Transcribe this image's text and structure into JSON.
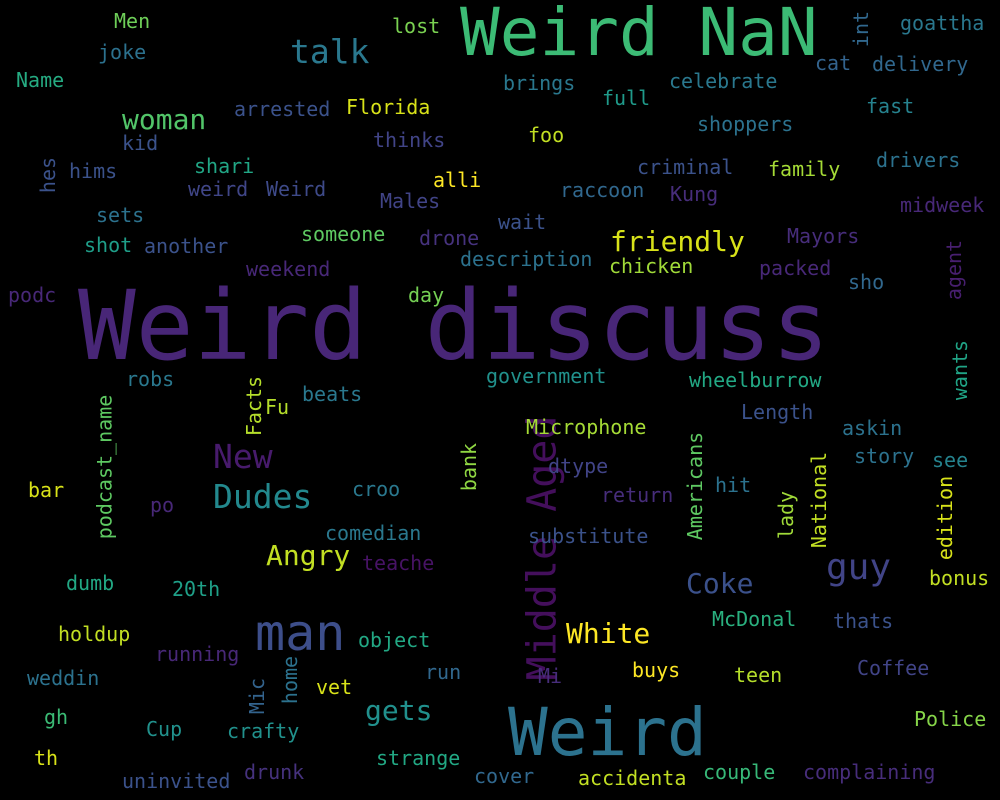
{
  "colors": {
    "background": "#000000",
    "palette": "viridis"
  },
  "words": [
    {
      "text": "Weird discuss",
      "color": "#482677"
    },
    {
      "text": "Weird NaN",
      "color": "#3cbb75"
    },
    {
      "text": "Weird",
      "color": "#2c728e"
    },
    {
      "text": "man",
      "color": "#3d4e8a"
    },
    {
      "text": "Middle Aged",
      "color": "#440f5c"
    },
    {
      "text": "talk",
      "color": "#2a788e"
    },
    {
      "text": "woman",
      "color": "#52c569"
    },
    {
      "text": "New",
      "color": "#481b6d"
    },
    {
      "text": "Dudes",
      "color": "#23898e"
    },
    {
      "text": "Angry",
      "color": "#c2df23"
    },
    {
      "text": "friendly",
      "color": "#d8e219"
    },
    {
      "text": "guy",
      "color": "#414487"
    },
    {
      "text": "Coke",
      "color": "#3b518b"
    },
    {
      "text": "White",
      "color": "#fde725"
    },
    {
      "text": "gets",
      "color": "#21908d"
    },
    {
      "text": "Men",
      "color": "#6ece58"
    },
    {
      "text": "lost",
      "color": "#7ad151"
    },
    {
      "text": "int",
      "color": "#31688e"
    },
    {
      "text": "goattha",
      "color": "#2a788e"
    },
    {
      "text": "joke",
      "color": "#2c718e"
    },
    {
      "text": "Name",
      "color": "#25ab82"
    },
    {
      "text": "brings",
      "color": "#2a788e"
    },
    {
      "text": "celebrate",
      "color": "#2a788e"
    },
    {
      "text": "cat",
      "color": "#33638d"
    },
    {
      "text": "delivery",
      "color": "#31688e"
    },
    {
      "text": "arrested",
      "color": "#3b528b"
    },
    {
      "text": "Florida",
      "color": "#d8e219"
    },
    {
      "text": "full",
      "color": "#1f9a8a"
    },
    {
      "text": "fast",
      "color": "#26828e"
    },
    {
      "text": "kid",
      "color": "#3b528b"
    },
    {
      "text": "thinks",
      "color": "#414487"
    },
    {
      "text": "foo",
      "color": "#c2df23"
    },
    {
      "text": "shoppers",
      "color": "#2c728e"
    },
    {
      "text": "hes",
      "color": "#3b528b"
    },
    {
      "text": "hims",
      "color": "#3b528b"
    },
    {
      "text": "shari",
      "color": "#21a685"
    },
    {
      "text": "weird",
      "color": "#404688"
    },
    {
      "text": "Weird",
      "color": "#3e4a89"
    },
    {
      "text": "criminal",
      "color": "#3b528b"
    },
    {
      "text": "family",
      "color": "#a5db36"
    },
    {
      "text": "drivers",
      "color": "#2c728e"
    },
    {
      "text": "alli",
      "color": "#fde725"
    },
    {
      "text": "raccoon",
      "color": "#31688e"
    },
    {
      "text": "Kung",
      "color": "#472d7b"
    },
    {
      "text": "Males",
      "color": "#414487"
    },
    {
      "text": "midweek",
      "color": "#482878"
    },
    {
      "text": "sets",
      "color": "#2c728e"
    },
    {
      "text": "wait",
      "color": "#3b528b"
    },
    {
      "text": "shot",
      "color": "#1f9e89"
    },
    {
      "text": "another",
      "color": "#3b528b"
    },
    {
      "text": "someone",
      "color": "#5ec962"
    },
    {
      "text": "drone",
      "color": "#46327e"
    },
    {
      "text": "Mayors",
      "color": "#472d7b"
    },
    {
      "text": "description",
      "color": "#2c728e"
    },
    {
      "text": "chicken",
      "color": "#a0da39"
    },
    {
      "text": "packed",
      "color": "#482878"
    },
    {
      "text": "agent",
      "color": "#481f70"
    },
    {
      "text": "weekend",
      "color": "#482878"
    },
    {
      "text": "sho",
      "color": "#31688e"
    },
    {
      "text": "podc",
      "color": "#482878"
    },
    {
      "text": "day",
      "color": "#75d054"
    },
    {
      "text": "government",
      "color": "#21918c"
    },
    {
      "text": "wheelburrow",
      "color": "#22a884"
    },
    {
      "text": "wants",
      "color": "#20a486"
    },
    {
      "text": "robs",
      "color": "#2a788e"
    },
    {
      "text": "beats",
      "color": "#2a788e"
    },
    {
      "text": "Facts",
      "color": "#b5de2b"
    },
    {
      "text": "Fu",
      "color": "#b5de2b"
    },
    {
      "text": "Length",
      "color": "#3b528b"
    },
    {
      "text": "askin",
      "color": "#2c728e"
    },
    {
      "text": "Microphone",
      "color": "#a5db36"
    },
    {
      "text": "podcast_name",
      "color": "#5ec962"
    },
    {
      "text": "Americans",
      "color": "#5ec962"
    },
    {
      "text": "National",
      "color": "#c2df23"
    },
    {
      "text": "story",
      "color": "#2c728e"
    },
    {
      "text": "see",
      "color": "#25838e"
    },
    {
      "text": "dtype",
      "color": "#414487"
    },
    {
      "text": "bank",
      "color": "#90d743"
    },
    {
      "text": "hit",
      "color": "#2c728e"
    },
    {
      "text": "edition",
      "color": "#d8e219"
    },
    {
      "text": "bar",
      "color": "#d8e219"
    },
    {
      "text": "croo",
      "color": "#2a788e"
    },
    {
      "text": "return",
      "color": "#472d7b"
    },
    {
      "text": "lady",
      "color": "#a0da39"
    },
    {
      "text": "po",
      "color": "#482878"
    },
    {
      "text": "comedian",
      "color": "#2a788e"
    },
    {
      "text": "substitute",
      "color": "#3b528b"
    },
    {
      "text": "teache",
      "color": "#471365"
    },
    {
      "text": "bonus",
      "color": "#c2df23"
    },
    {
      "text": "dumb",
      "color": "#22a884"
    },
    {
      "text": "20th",
      "color": "#1fa088"
    },
    {
      "text": "McDonal",
      "color": "#2ab07f"
    },
    {
      "text": "thats",
      "color": "#3b528b"
    },
    {
      "text": "holdup",
      "color": "#c2df23"
    },
    {
      "text": "object",
      "color": "#22a884"
    },
    {
      "text": "running",
      "color": "#482878"
    },
    {
      "text": "home",
      "color": "#2c728e"
    },
    {
      "text": "weddin",
      "color": "#2c728e"
    },
    {
      "text": "Mic",
      "color": "#33638d"
    },
    {
      "text": "run",
      "color": "#31688e"
    },
    {
      "text": "Mi",
      "color": "#472d7b"
    },
    {
      "text": "buys",
      "color": "#fde725"
    },
    {
      "text": "teen",
      "color": "#b5de2b"
    },
    {
      "text": "Coffee",
      "color": "#414487"
    },
    {
      "text": "vet",
      "color": "#d8e219"
    },
    {
      "text": "gh",
      "color": "#3bbb75"
    },
    {
      "text": "Police",
      "color": "#86d549"
    },
    {
      "text": "Cup",
      "color": "#21918c"
    },
    {
      "text": "crafty",
      "color": "#21918c"
    },
    {
      "text": "th",
      "color": "#d8e219"
    },
    {
      "text": "strange",
      "color": "#22a884"
    },
    {
      "text": "uninvited",
      "color": "#3b528b"
    },
    {
      "text": "drunk",
      "color": "#46327e"
    },
    {
      "text": "cover",
      "color": "#31688e"
    },
    {
      "text": "accidenta",
      "color": "#c2df23"
    },
    {
      "text": "couple",
      "color": "#37b878"
    },
    {
      "text": "complaining",
      "color": "#472d7b"
    }
  ]
}
